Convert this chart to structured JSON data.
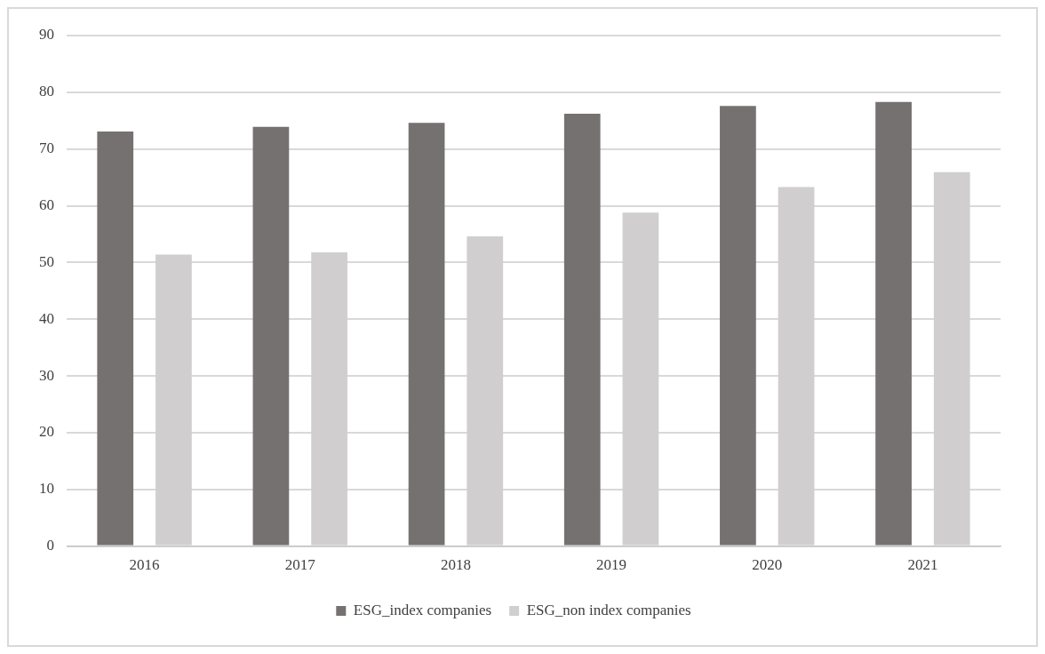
{
  "chart_data": {
    "type": "bar",
    "categories": [
      "2016",
      "2017",
      "2018",
      "2019",
      "2020",
      "2021"
    ],
    "series": [
      {
        "name": "ESG_index companies",
        "color": "#767171",
        "values": [
          73.1,
          73.9,
          74.6,
          76.2,
          77.6,
          78.3
        ]
      },
      {
        "name": "ESG_non index companies",
        "color": "#d0cece",
        "values": [
          51.4,
          51.8,
          54.6,
          58.8,
          63.3,
          65.9
        ]
      }
    ],
    "ylim": [
      0,
      90
    ],
    "yticks": [
      0,
      10,
      20,
      30,
      40,
      50,
      60,
      70,
      80,
      90
    ],
    "grid": "y",
    "legend": "bottom"
  }
}
